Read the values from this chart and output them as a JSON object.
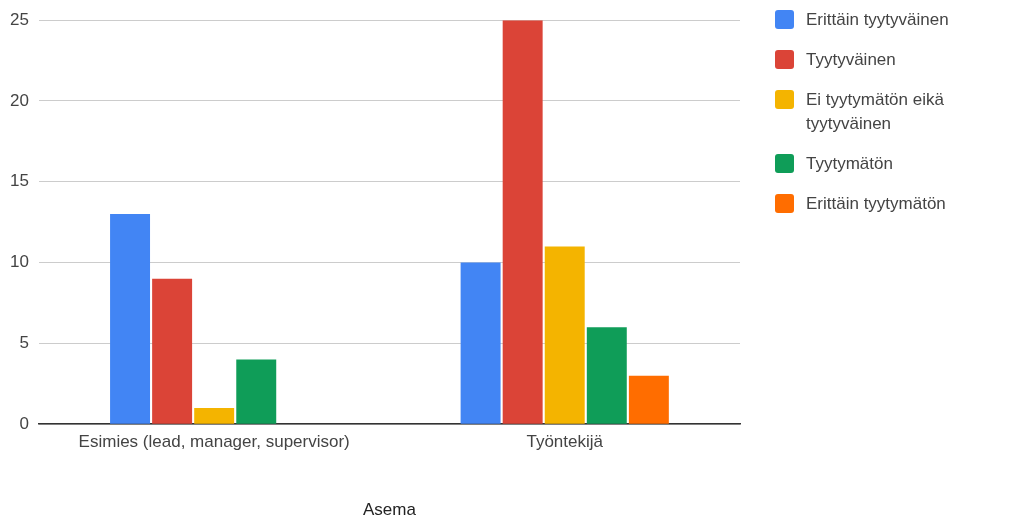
{
  "chart_data": {
    "type": "bar",
    "xlabel": "Asema",
    "categories": [
      "Esimies (lead, manager, supervisor)",
      "Työntekijä"
    ],
    "series": [
      {
        "name": "Erittäin tyytyväinen",
        "color": "#4285f4",
        "values": [
          13,
          10
        ]
      },
      {
        "name": "Tyytyväinen",
        "color": "#db4437",
        "values": [
          9,
          25
        ]
      },
      {
        "name": "Ei tyytymätön eikä tyytyväinen",
        "color": "#f4b400",
        "values": [
          1,
          11
        ]
      },
      {
        "name": "Tyytymätön",
        "color": "#0f9d58",
        "values": [
          4,
          6
        ]
      },
      {
        "name": "Erittäin tyytymätön",
        "color": "#ff6d00",
        "values": [
          null,
          3
        ]
      }
    ],
    "ylim": [
      0,
      25
    ],
    "yticks": [
      0,
      5,
      10,
      15,
      20,
      25
    ],
    "grid": "y",
    "legend": "right"
  }
}
